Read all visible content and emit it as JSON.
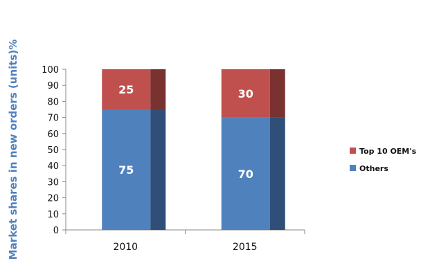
{
  "chart_data": {
    "type": "bar",
    "stacked": true,
    "categories": [
      "2010",
      "2015"
    ],
    "series": [
      {
        "name": "Others",
        "values": [
          75,
          70
        ],
        "color": "#4F81BD",
        "shade": "#2F4F78"
      },
      {
        "name": "Top 10 OEM's",
        "values": [
          25,
          30
        ],
        "color": "#C0504D",
        "shade": "#7A3230"
      }
    ],
    "ylabel": "Market shares in new orders (units)%",
    "ylabel_color": "#4F81BD",
    "xlabel": "",
    "ylim": [
      0,
      100
    ],
    "yticks": [
      0,
      10,
      20,
      30,
      40,
      50,
      60,
      70,
      80,
      90,
      100
    ],
    "grid": false,
    "legend_position": "right",
    "legend_order": [
      "Top 10 OEM's",
      "Others"
    ]
  }
}
